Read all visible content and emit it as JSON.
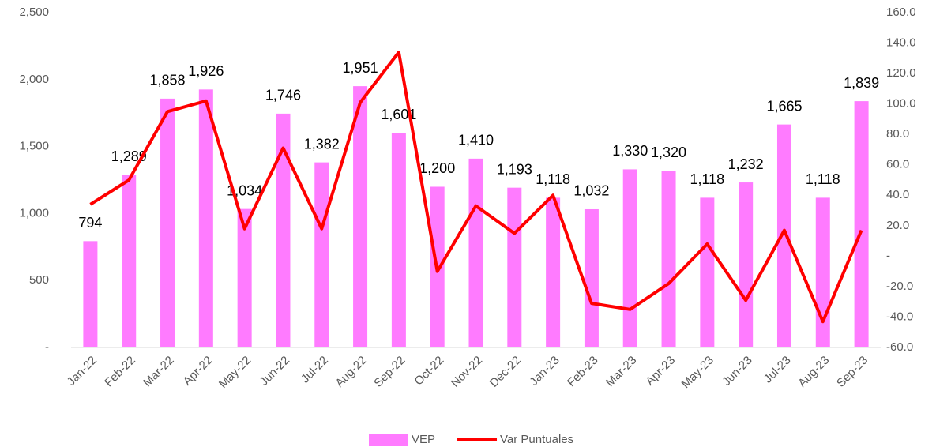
{
  "chart_data": {
    "type": "bar_line",
    "categories": [
      "Jan-22",
      "Feb-22",
      "Mar-22",
      "Apr-22",
      "May-22",
      "Jun-22",
      "Jul-22",
      "Aug-22",
      "Sep-22",
      "Oct-22",
      "Nov-22",
      "Dec-22",
      "Jan-23",
      "Feb-23",
      "Mar-23",
      "Apr-23",
      "May-23",
      "Jun-23",
      "Jul-23",
      "Aug-23",
      "Sep-23"
    ],
    "series": [
      {
        "name": "VEP",
        "color": "#ff7bff",
        "type": "bar",
        "values": [
          794,
          1289,
          1858,
          1926,
          1034,
          1746,
          1382,
          1951,
          1601,
          1200,
          1410,
          1193,
          1118,
          1032,
          1330,
          1320,
          1118,
          1232,
          1665,
          1118,
          1839
        ],
        "value_labels": [
          "794",
          "1,289",
          "1,858",
          "1,926",
          "1,034",
          "1,746",
          "1,382",
          "1,951",
          "1,601",
          "1,200",
          "1,410",
          "1,193",
          "1,118",
          "1,032",
          "1,330",
          "1,320",
          "1,118",
          "1,232",
          "1,665",
          "1,118",
          "1,839"
        ]
      },
      {
        "name": "Var Puntuales",
        "color": "#ff0000",
        "type": "line",
        "axis": "y2",
        "values": [
          34,
          50,
          95,
          102,
          18,
          71,
          18,
          101,
          134,
          -10,
          33,
          15,
          40,
          -31,
          -35,
          -18,
          8,
          -29,
          17,
          -43,
          17
        ]
      }
    ],
    "ylim": [
      0,
      2500
    ],
    "yticks": [
      {
        "value": 0,
        "label": "-"
      },
      500,
      {
        "value": 1000,
        "label": "1,000"
      },
      {
        "value": 1500,
        "label": "1,500"
      },
      {
        "value": 2000,
        "label": "2,000"
      },
      {
        "value": 2500,
        "label": "2,500"
      }
    ],
    "y2lim": [
      -60,
      160
    ],
    "y2ticks": [
      {
        "value": -60,
        "label": "-60.0"
      },
      {
        "value": -40,
        "label": "-40.0"
      },
      {
        "value": -20,
        "label": "-20.0"
      },
      {
        "value": 0,
        "label": "-"
      },
      {
        "value": 20,
        "label": "20.0"
      },
      {
        "value": 40,
        "label": "40.0"
      },
      {
        "value": 60,
        "label": "60.0"
      },
      {
        "value": 80,
        "label": "80.0"
      },
      {
        "value": 100,
        "label": "100.0"
      },
      {
        "value": 120,
        "label": "120.0"
      },
      {
        "value": 140,
        "label": "140.0"
      },
      {
        "value": 160,
        "label": "160.0"
      }
    ],
    "legend": "bottom"
  }
}
